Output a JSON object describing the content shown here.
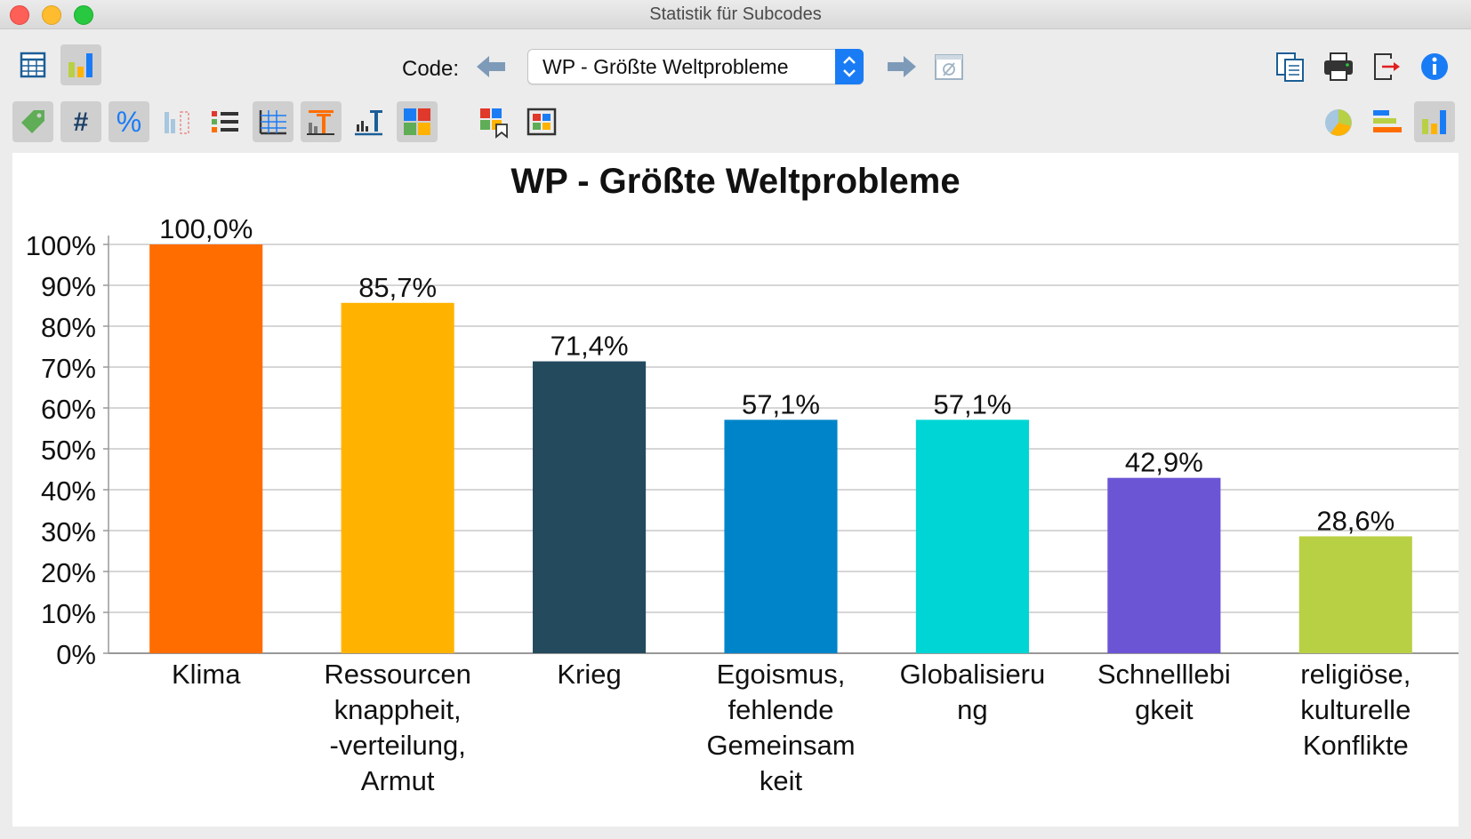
{
  "window": {
    "title": "Statistik für Subcodes"
  },
  "toolbar": {
    "code_label": "Code:",
    "selected_code": "WP - Größte Weltprobleme"
  },
  "colors": {
    "accent": "#1a7cf5",
    "bars": [
      "#ff6d00",
      "#ffb300",
      "#244a5e",
      "#0084c9",
      "#00d5d5",
      "#6c55d4",
      "#b8d044"
    ]
  },
  "chart_data": {
    "type": "bar",
    "title": "WP - Größte Weltprobleme",
    "categories": [
      [
        "Klima"
      ],
      [
        "Ressourcen",
        "knappheit,",
        "-verteilung,",
        "Armut"
      ],
      [
        "Krieg"
      ],
      [
        "Egoismus,",
        "fehlende",
        "Gemeinsam",
        "keit"
      ],
      [
        "Globalisieru",
        "ng"
      ],
      [
        "Schnelllebi",
        "gkeit"
      ],
      [
        "religiöse,",
        "kulturelle",
        "Konflikte"
      ]
    ],
    "values": [
      100.0,
      85.7,
      71.4,
      57.1,
      57.1,
      42.9,
      28.6
    ],
    "value_labels": [
      "100,0%",
      "85,7%",
      "71,4%",
      "57,1%",
      "57,1%",
      "42,9%",
      "28,6%"
    ],
    "ylim": [
      0,
      100
    ],
    "y_ticks": [
      "0%",
      "10%",
      "20%",
      "30%",
      "40%",
      "50%",
      "60%",
      "70%",
      "80%",
      "90%",
      "100%"
    ],
    "grid": true,
    "legend": "none"
  }
}
